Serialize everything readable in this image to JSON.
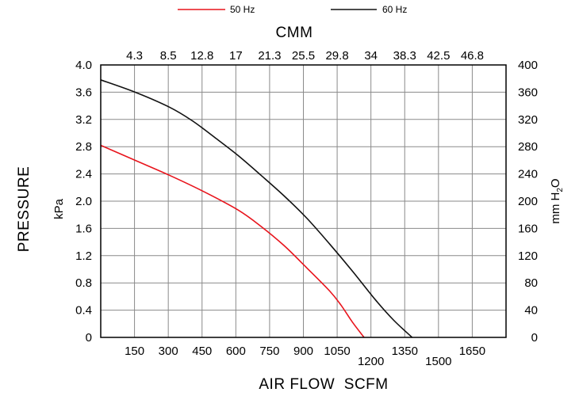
{
  "chart_data": {
    "type": "line",
    "top_axis": {
      "label": "CMM",
      "ticks": [
        "4.3",
        "8.5",
        "12.8",
        "17",
        "21.3",
        "25.5",
        "29.8",
        "34",
        "38.3",
        "42.5",
        "46.8"
      ]
    },
    "bottom_axis": {
      "label": "AIR FLOW  SCFM",
      "ticks": [
        "150",
        "300",
        "450",
        "600",
        "750",
        "900",
        "1050",
        "1200",
        "1350",
        "1500",
        "1650"
      ],
      "xlim": [
        0,
        1770
      ]
    },
    "left_axis": {
      "label": "PRESSURE",
      "unit": "kPa",
      "ticks": [
        "0",
        "0.4",
        "0.8",
        "1.2",
        "1.6",
        "2.0",
        "2.4",
        "2.8",
        "3.2",
        "3.6",
        "4.0"
      ],
      "ylim": [
        0,
        4.0
      ]
    },
    "right_axis": {
      "unit_main": "mm H",
      "unit_sub": "2",
      "unit_end": "O",
      "ticks": [
        "0",
        "40",
        "80",
        "120",
        "160",
        "200",
        "240",
        "280",
        "320",
        "360",
        "400"
      ]
    },
    "grid": true,
    "legend_position": "top",
    "series": [
      {
        "name": "50 Hz",
        "color": "#e8141c",
        "x": [
          0,
          150,
          300,
          450,
          600,
          700,
          800,
          900,
          1000,
          1050,
          1100,
          1150
        ],
        "y": [
          2.82,
          2.6,
          2.38,
          2.14,
          1.87,
          1.63,
          1.35,
          1.02,
          0.68,
          0.47,
          0.22,
          0
        ]
      },
      {
        "name": "60 Hz",
        "color": "#111111",
        "x": [
          0,
          150,
          300,
          400,
          500,
          600,
          700,
          800,
          900,
          1000,
          1100,
          1200,
          1280,
          1360
        ],
        "y": [
          3.78,
          3.6,
          3.38,
          3.18,
          2.93,
          2.67,
          2.38,
          2.08,
          1.75,
          1.37,
          0.97,
          0.55,
          0.25,
          0
        ]
      }
    ]
  }
}
